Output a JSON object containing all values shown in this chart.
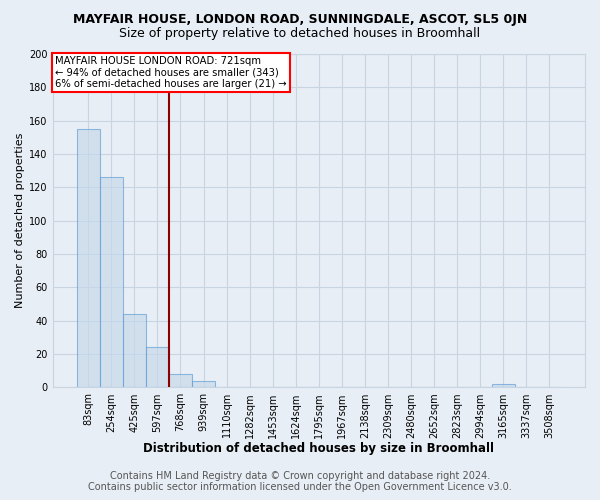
{
  "title1": "MAYFAIR HOUSE, LONDON ROAD, SUNNINGDALE, ASCOT, SL5 0JN",
  "title2": "Size of property relative to detached houses in Broomhall",
  "xlabel": "Distribution of detached houses by size in Broomhall",
  "ylabel": "Number of detached properties",
  "categories": [
    "83sqm",
    "254sqm",
    "425sqm",
    "597sqm",
    "768sqm",
    "939sqm",
    "1110sqm",
    "1282sqm",
    "1453sqm",
    "1624sqm",
    "1795sqm",
    "1967sqm",
    "2138sqm",
    "2309sqm",
    "2480sqm",
    "2652sqm",
    "2823sqm",
    "2994sqm",
    "3165sqm",
    "3337sqm",
    "3508sqm"
  ],
  "values": [
    155,
    126,
    44,
    24,
    8,
    4,
    0,
    0,
    0,
    0,
    0,
    0,
    0,
    0,
    0,
    0,
    0,
    0,
    2,
    0,
    0
  ],
  "bar_color": "#c5d8ea",
  "bar_edge_color": "#5b9bd5",
  "bar_alpha": 0.65,
  "vline_x_index": 4,
  "vline_color": "#8b0000",
  "annotation_line1": "MAYFAIR HOUSE LONDON ROAD: 721sqm",
  "annotation_line2": "← 94% of detached houses are smaller (343)",
  "annotation_line3": "6% of semi-detached houses are larger (21) →",
  "annotation_box_color": "white",
  "annotation_box_edge_color": "red",
  "ylim": [
    0,
    200
  ],
  "yticks": [
    0,
    20,
    40,
    60,
    80,
    100,
    120,
    140,
    160,
    180,
    200
  ],
  "footer1": "Contains HM Land Registry data © Crown copyright and database right 2024.",
  "footer2": "Contains public sector information licensed under the Open Government Licence v3.0.",
  "bg_color": "#e8eef5",
  "grid_color": "#c8d4df",
  "title1_fontsize": 9,
  "title2_fontsize": 9,
  "xlabel_fontsize": 8.5,
  "ylabel_fontsize": 8,
  "tick_fontsize": 7,
  "footer_fontsize": 7
}
